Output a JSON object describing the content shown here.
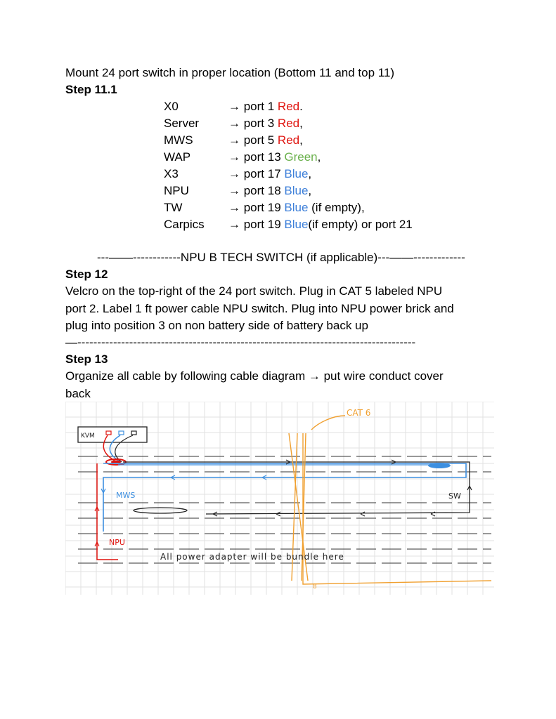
{
  "intro": "Mount 24 port switch in proper location (Bottom 11 and top 11)",
  "step_11_1": {
    "title": "Step 11.1",
    "ports": [
      {
        "device": "X0",
        "arrow": "→ port 1 ",
        "color_word": "Red",
        "color_class": "red",
        "suffix": "."
      },
      {
        "device": "Server",
        "arrow": "→ port 3 ",
        "color_word": "Red",
        "color_class": "red",
        "suffix": ","
      },
      {
        "device": "MWS",
        "arrow": "→ port 5 ",
        "color_word": "Red",
        "color_class": "red",
        "suffix": ","
      },
      {
        "device": "WAP",
        "arrow": "→ port 13 ",
        "color_word": "Green",
        "color_class": "green",
        "suffix": ","
      },
      {
        "device": "X3",
        "arrow": "→ port 17 ",
        "color_word": "Blue",
        "color_class": "blue",
        "suffix": ","
      },
      {
        "device": "NPU",
        "arrow": "→ port 18 ",
        "color_word": "Blue",
        "color_class": "blue",
        "suffix": ","
      },
      {
        "device": "TW",
        "arrow": "→ port 19 ",
        "color_word": "Blue",
        "color_class": "blue",
        "suffix": " (if empty),"
      },
      {
        "device": "Carpics",
        "arrow": "→ port 19 ",
        "color_word": "Blue",
        "color_class": "blue",
        "suffix": "(if empty) or port 21"
      }
    ]
  },
  "npu_separator": "---——------------NPU B TECH SWITCH (if applicable)---——-------------",
  "step_12": {
    "title": "Step 12",
    "lines": [
      "Velcro on the top-right of the 24 port switch. Plug in CAT 5 labeled NPU",
      "port 2. Label 1 ft power cable NPU switch. Plug into NPU power brick and",
      "plug into position 3 on non battery side of battery back up"
    ]
  },
  "long_separator": "—-------------------------------------------------------------------------------------",
  "step_13": {
    "title": "Step 13",
    "lines": [
      "Organize all cable by following cable diagram → put wire conduct cover",
      "back"
    ]
  },
  "diagram": {
    "labels": {
      "kvm": "KVM",
      "cat": "CAT 6",
      "mws": "MWS",
      "sw": "SW",
      "npu": "NPU",
      "power_note": "All power adapter will be bundle here",
      "eight": "8"
    },
    "colors": {
      "red": "#e0140f",
      "blue": "#3d8fe0",
      "orange": "#f0a030",
      "black": "#222222",
      "grid": "#e2e2e2"
    }
  }
}
